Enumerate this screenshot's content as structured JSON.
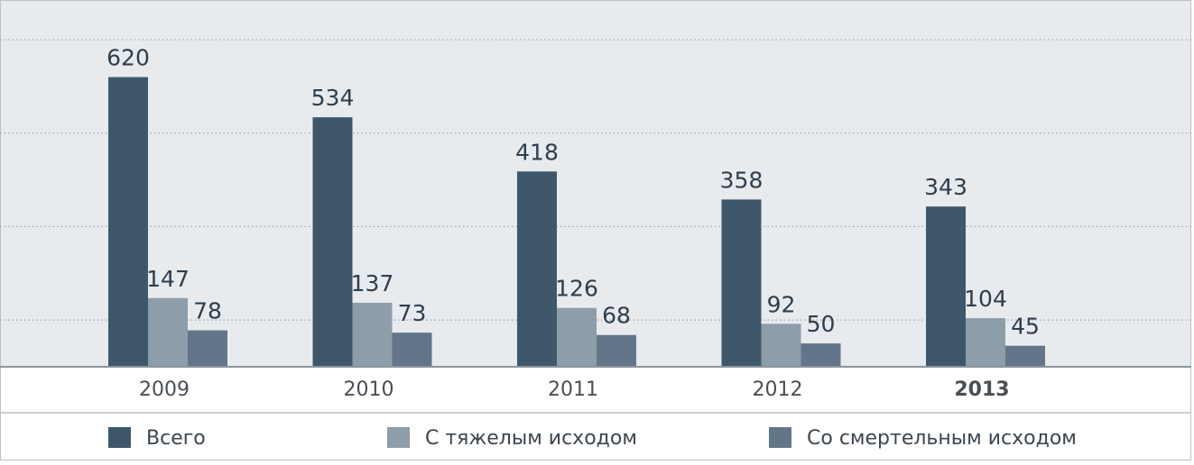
{
  "chart_data": {
    "type": "bar",
    "categories": [
      "2009",
      "2010",
      "2011",
      "2012",
      "2013"
    ],
    "highlight_index": 4,
    "series": [
      {
        "name": "Всего",
        "color": "#3e576b",
        "values": [
          620,
          534,
          418,
          358,
          343
        ]
      },
      {
        "name": "С тяжелым исходом",
        "color": "#8d9da9",
        "values": [
          147,
          137,
          126,
          92,
          104
        ]
      },
      {
        "name": "Со смертельным исходом",
        "color": "#637689",
        "values": [
          78,
          73,
          68,
          50,
          45
        ]
      }
    ],
    "ylim": [
      0,
      785
    ],
    "yticks": [
      100,
      300,
      500,
      700
    ],
    "grid": true
  }
}
